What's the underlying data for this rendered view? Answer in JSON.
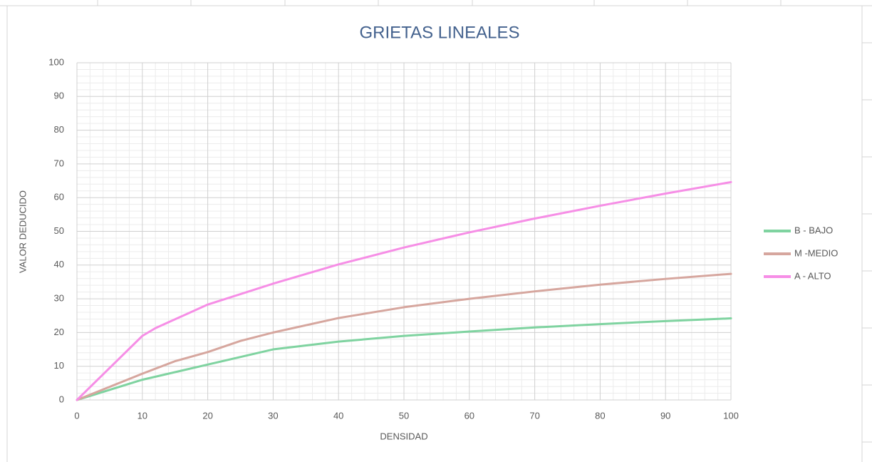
{
  "chart_data": {
    "type": "line",
    "title": "GRIETAS LINEALES",
    "x_label": "DENSIDAD",
    "y_label": "VALOR DEDUCIDO",
    "xlim": [
      0,
      100
    ],
    "ylim": [
      0,
      100
    ],
    "xticks": [
      0,
      10,
      20,
      30,
      40,
      50,
      60,
      70,
      80,
      90,
      100
    ],
    "yticks": [
      0,
      10,
      20,
      30,
      40,
      50,
      60,
      70,
      80,
      90,
      100
    ],
    "grid": true,
    "minor_grid": true,
    "legend": "right",
    "series": [
      {
        "name": "B - BAJO",
        "color": "#7fd3a0",
        "x": [
          0,
          10,
          20,
          30,
          40,
          50,
          60,
          70,
          80,
          90,
          100
        ],
        "values": [
          0,
          6,
          10.5,
          15,
          17.3,
          19,
          20.3,
          21.5,
          22.5,
          23.4,
          24.2
        ]
      },
      {
        "name": "M -MEDIO",
        "color": "#d6a69e",
        "x": [
          0,
          10,
          15,
          20,
          25,
          30,
          40,
          50,
          60,
          70,
          80,
          90,
          100
        ],
        "values": [
          0,
          7.8,
          11.5,
          14.2,
          17.5,
          20,
          24.3,
          27.5,
          30,
          32.2,
          34.2,
          35.9,
          37.4
        ]
      },
      {
        "name": "A - ALTO",
        "color": "#f68ee6",
        "x": [
          0,
          5,
          10,
          12,
          20,
          30,
          40,
          50,
          60,
          70,
          80,
          90,
          100
        ],
        "values": [
          0,
          9.5,
          19,
          21.3,
          28.3,
          34.5,
          40.2,
          45.2,
          49.7,
          53.8,
          57.6,
          61.2,
          64.6
        ]
      }
    ]
  }
}
